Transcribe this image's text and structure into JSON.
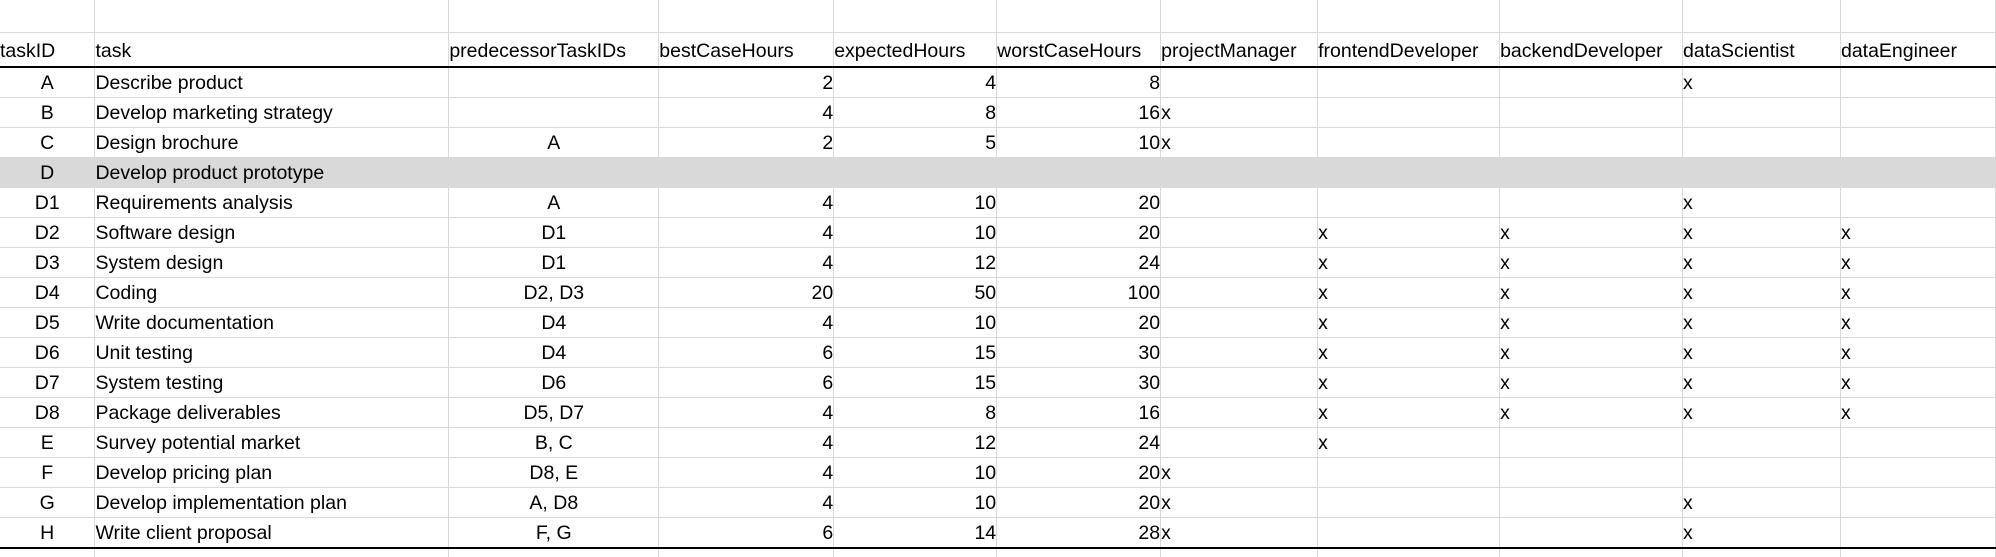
{
  "columns": [
    "taskID",
    "task",
    "predecessorTaskIDs",
    "bestCaseHours",
    "expectedHours",
    "worstCaseHours",
    "projectManager",
    "frontendDeveloper",
    "backendDeveloper",
    "dataScientist",
    "dataEngineer"
  ],
  "rows": [
    {
      "taskID": "A",
      "task": "Describe product",
      "pred": "",
      "best": "2",
      "exp": "4",
      "worst": "8",
      "pm": "",
      "fe": "",
      "be": "",
      "ds": "x",
      "de": ""
    },
    {
      "taskID": "B",
      "task": "Develop marketing strategy",
      "pred": "",
      "best": "4",
      "exp": "8",
      "worst": "16",
      "pm": "x",
      "fe": "",
      "be": "",
      "ds": "",
      "de": ""
    },
    {
      "taskID": "C",
      "task": "Design brochure",
      "pred": "A",
      "best": "2",
      "exp": "5",
      "worst": "10",
      "pm": "x",
      "fe": "",
      "be": "",
      "ds": "",
      "de": ""
    },
    {
      "taskID": "D",
      "task": "Develop product  prototype",
      "pred": "",
      "best": "",
      "exp": "",
      "worst": "",
      "pm": "",
      "fe": "",
      "be": "",
      "ds": "",
      "de": ""
    },
    {
      "taskID": "D1",
      "task": "Requirements analysis",
      "pred": "A",
      "best": "4",
      "exp": "10",
      "worst": "20",
      "pm": "",
      "fe": "",
      "be": "",
      "ds": "x",
      "de": ""
    },
    {
      "taskID": "D2",
      "task": "Software design",
      "pred": "D1",
      "best": "4",
      "exp": "10",
      "worst": "20",
      "pm": "",
      "fe": "x",
      "be": "x",
      "ds": "x",
      "de": "x"
    },
    {
      "taskID": "D3",
      "task": "System design",
      "pred": "D1",
      "best": "4",
      "exp": "12",
      "worst": "24",
      "pm": "",
      "fe": "x",
      "be": "x",
      "ds": "x",
      "de": "x"
    },
    {
      "taskID": "D4",
      "task": "Coding",
      "pred": "D2, D3",
      "best": "20",
      "exp": "50",
      "worst": "100",
      "pm": "",
      "fe": "x",
      "be": "x",
      "ds": "x",
      "de": "x"
    },
    {
      "taskID": "D5",
      "task": "Write documentation",
      "pred": "D4",
      "best": "4",
      "exp": "10",
      "worst": "20",
      "pm": "",
      "fe": "x",
      "be": "x",
      "ds": "x",
      "de": "x"
    },
    {
      "taskID": "D6",
      "task": "Unit testing",
      "pred": "D4",
      "best": "6",
      "exp": "15",
      "worst": "30",
      "pm": "",
      "fe": "x",
      "be": "x",
      "ds": "x",
      "de": "x"
    },
    {
      "taskID": "D7",
      "task": "System testing",
      "pred": "D6",
      "best": "6",
      "exp": "15",
      "worst": "30",
      "pm": "",
      "fe": "x",
      "be": "x",
      "ds": "x",
      "de": "x"
    },
    {
      "taskID": "D8",
      "task": "Package deliverables",
      "pred": "D5, D7",
      "best": "4",
      "exp": "8",
      "worst": "16",
      "pm": "",
      "fe": "x",
      "be": "x",
      "ds": "x",
      "de": "x"
    },
    {
      "taskID": "E",
      "task": "Survey potential market",
      "pred": "B, C",
      "best": "4",
      "exp": "12",
      "worst": "24",
      "pm": "",
      "fe": "x",
      "be": "",
      "ds": "",
      "de": ""
    },
    {
      "taskID": "F",
      "task": "Develop pricing plan",
      "pred": "D8, E",
      "best": "4",
      "exp": "10",
      "worst": "20",
      "pm": "x",
      "fe": "",
      "be": "",
      "ds": "",
      "de": ""
    },
    {
      "taskID": "G",
      "task": "Develop implementation  plan",
      "pred": "A, D8",
      "best": "4",
      "exp": "10",
      "worst": "20",
      "pm": "x",
      "fe": "",
      "be": "",
      "ds": "x",
      "de": ""
    },
    {
      "taskID": "H",
      "task": "Write client proposal",
      "pred": "F, G",
      "best": "6",
      "exp": "14",
      "worst": "28",
      "pm": "x",
      "fe": "",
      "be": "",
      "ds": "x",
      "de": ""
    }
  ]
}
